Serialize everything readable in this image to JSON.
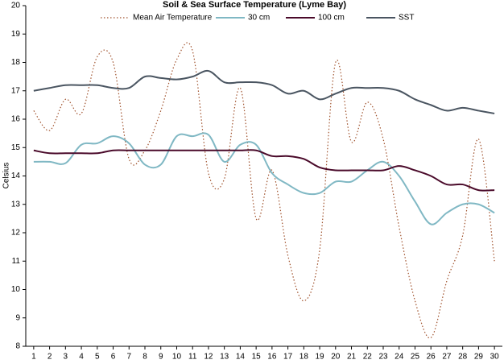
{
  "chart_data": {
    "type": "line",
    "title": "Soil & Sea Surface Temperature (Lyme Bay)",
    "ylabel": "Celsius",
    "x": [
      1,
      2,
      3,
      4,
      5,
      6,
      7,
      8,
      9,
      10,
      11,
      12,
      13,
      14,
      15,
      16,
      17,
      18,
      19,
      20,
      21,
      22,
      23,
      24,
      25,
      26,
      27,
      28,
      29,
      30
    ],
    "xlim": [
      0.5,
      30.5
    ],
    "xticks": [
      1,
      2,
      3,
      4,
      5,
      6,
      7,
      8,
      9,
      10,
      11,
      12,
      13,
      14,
      15,
      16,
      17,
      18,
      19,
      20,
      21,
      22,
      23,
      24,
      25,
      26,
      27,
      28,
      29,
      30
    ],
    "ylim": [
      8,
      20
    ],
    "yticks": [
      8,
      9,
      10,
      11,
      12,
      13,
      14,
      15,
      16,
      17,
      18,
      19,
      20
    ],
    "grid": false,
    "legend": "top",
    "series": [
      {
        "name": "Mean Air Temperature",
        "color": "#a0522d",
        "dash": "dotted",
        "values": [
          16.3,
          15.6,
          16.7,
          16.2,
          18.2,
          18.0,
          14.6,
          14.9,
          16.3,
          18.1,
          18.4,
          14.1,
          13.9,
          17.1,
          12.5,
          14.2,
          11.2,
          9.6,
          11.4,
          18.0,
          15.2,
          16.6,
          15.3,
          12.2,
          9.6,
          8.3,
          10.3,
          11.9,
          15.3,
          11.0
        ]
      },
      {
        "name": "30 cm",
        "color": "#80b8c4",
        "values": [
          14.5,
          14.5,
          14.45,
          15.1,
          15.15,
          15.4,
          15.15,
          14.4,
          14.4,
          15.4,
          15.4,
          15.45,
          14.5,
          15.1,
          15.1,
          14.1,
          13.7,
          13.4,
          13.4,
          13.8,
          13.8,
          14.2,
          14.5,
          14.0,
          13.1,
          12.3,
          12.7,
          13.0,
          13.0,
          12.7
        ]
      },
      {
        "name": "100 cm",
        "color": "#4a0a2a",
        "values": [
          14.9,
          14.8,
          14.8,
          14.8,
          14.8,
          14.9,
          14.9,
          14.9,
          14.9,
          14.9,
          14.9,
          14.9,
          14.9,
          14.9,
          14.9,
          14.7,
          14.7,
          14.6,
          14.3,
          14.2,
          14.2,
          14.2,
          14.2,
          14.35,
          14.2,
          14.0,
          13.7,
          13.7,
          13.5,
          13.5
        ]
      },
      {
        "name": "SST",
        "color": "#4a5561",
        "values": [
          17.0,
          17.1,
          17.2,
          17.2,
          17.2,
          17.1,
          17.1,
          17.5,
          17.45,
          17.4,
          17.5,
          17.7,
          17.3,
          17.3,
          17.3,
          17.2,
          16.9,
          17.0,
          16.7,
          16.9,
          17.1,
          17.1,
          17.1,
          17.0,
          16.7,
          16.5,
          16.3,
          16.4,
          16.3,
          16.2
        ]
      }
    ]
  }
}
